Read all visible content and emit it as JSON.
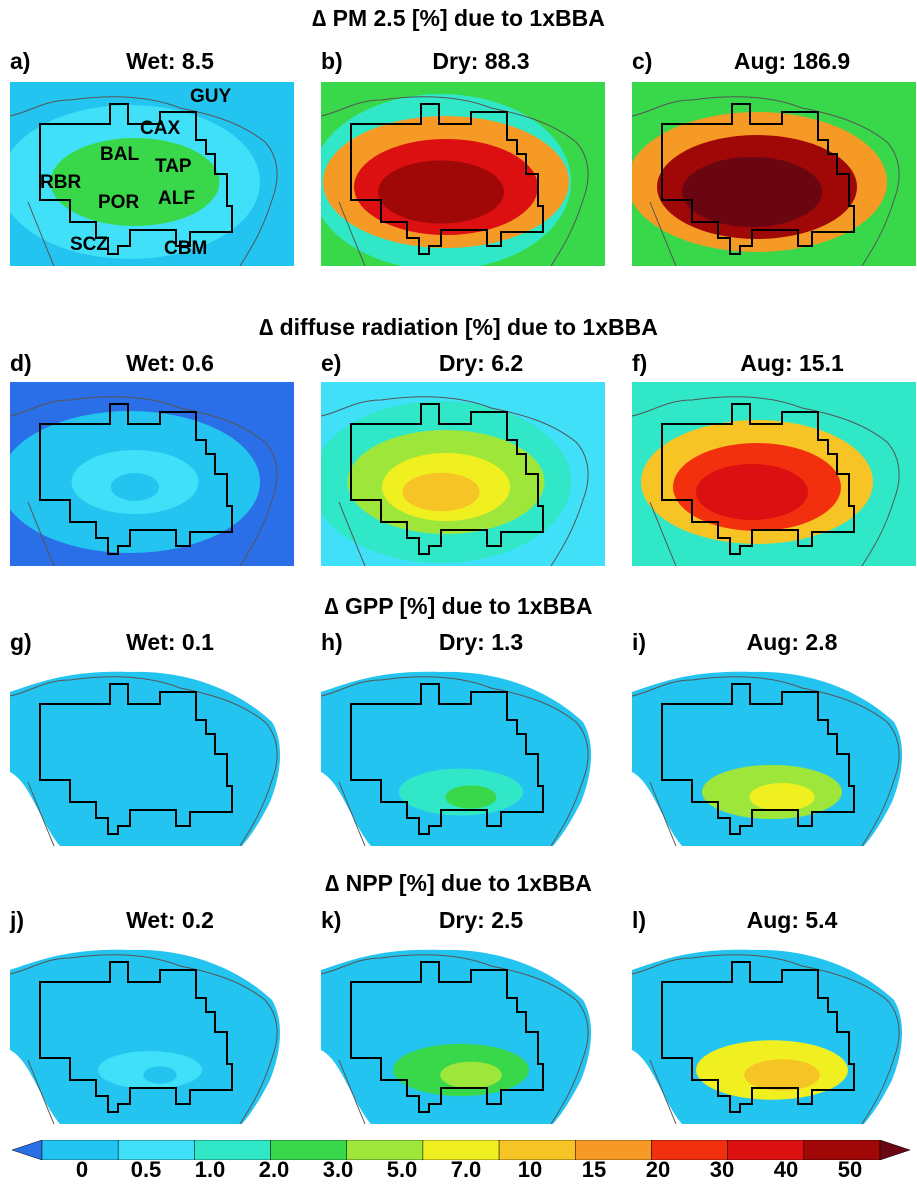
{
  "sections": [
    {
      "title": "∆ PM 2.5 [%] due to 1xBBA",
      "panels": [
        {
          "letter": "a)",
          "label": "Wet: 8.5",
          "level": 0.35
        },
        {
          "letter": "b)",
          "label": "Dry: 88.3",
          "level": 0.9
        },
        {
          "letter": "c)",
          "label": "Aug: 186.9",
          "level": 1.0
        }
      ]
    },
    {
      "title": "∆ diffuse radiation [%] due to 1xBBA",
      "panels": [
        {
          "letter": "d)",
          "label": "Wet: 0.6",
          "level": 0.05
        },
        {
          "letter": "e)",
          "label": "Dry: 6.2",
          "level": 0.55
        },
        {
          "letter": "f)",
          "label": "Aug: 15.1",
          "level": 0.8
        }
      ]
    },
    {
      "title": "∆ GPP [%] due to 1xBBA",
      "panels": [
        {
          "letter": "g)",
          "label": "Wet: 0.1",
          "level": 0.02
        },
        {
          "letter": "h)",
          "label": "Dry: 1.3",
          "level": 0.3
        },
        {
          "letter": "i)",
          "label": "Aug: 2.8",
          "level": 0.5
        }
      ]
    },
    {
      "title": "∆ NPP [%] due to 1xBBA",
      "panels": [
        {
          "letter": "j)",
          "label": "Wet: 0.2",
          "level": 0.05
        },
        {
          "letter": "k)",
          "label": "Dry: 2.5",
          "level": 0.45
        },
        {
          "letter": "l)",
          "label": "Aug: 5.4",
          "level": 0.65
        }
      ]
    }
  ],
  "site_labels": [
    "GUY",
    "CAX",
    "BAL",
    "TAP",
    "RBR",
    "POR",
    "ALF",
    "SCZ",
    "CBM"
  ],
  "colorbar": {
    "labels": [
      "0",
      "0.5",
      "1.0",
      "2.0",
      "3.0",
      "5.0",
      "7.0",
      "10",
      "15",
      "20",
      "30",
      "40",
      "50"
    ],
    "colors": [
      "#2b6fe8",
      "#24c4f0",
      "#3fe0f8",
      "#30e8c8",
      "#38d84a",
      "#9ee63a",
      "#f0f020",
      "#f6c424",
      "#f59a24",
      "#f2300e",
      "#dc1010",
      "#a00808",
      "#6a0612"
    ]
  }
}
